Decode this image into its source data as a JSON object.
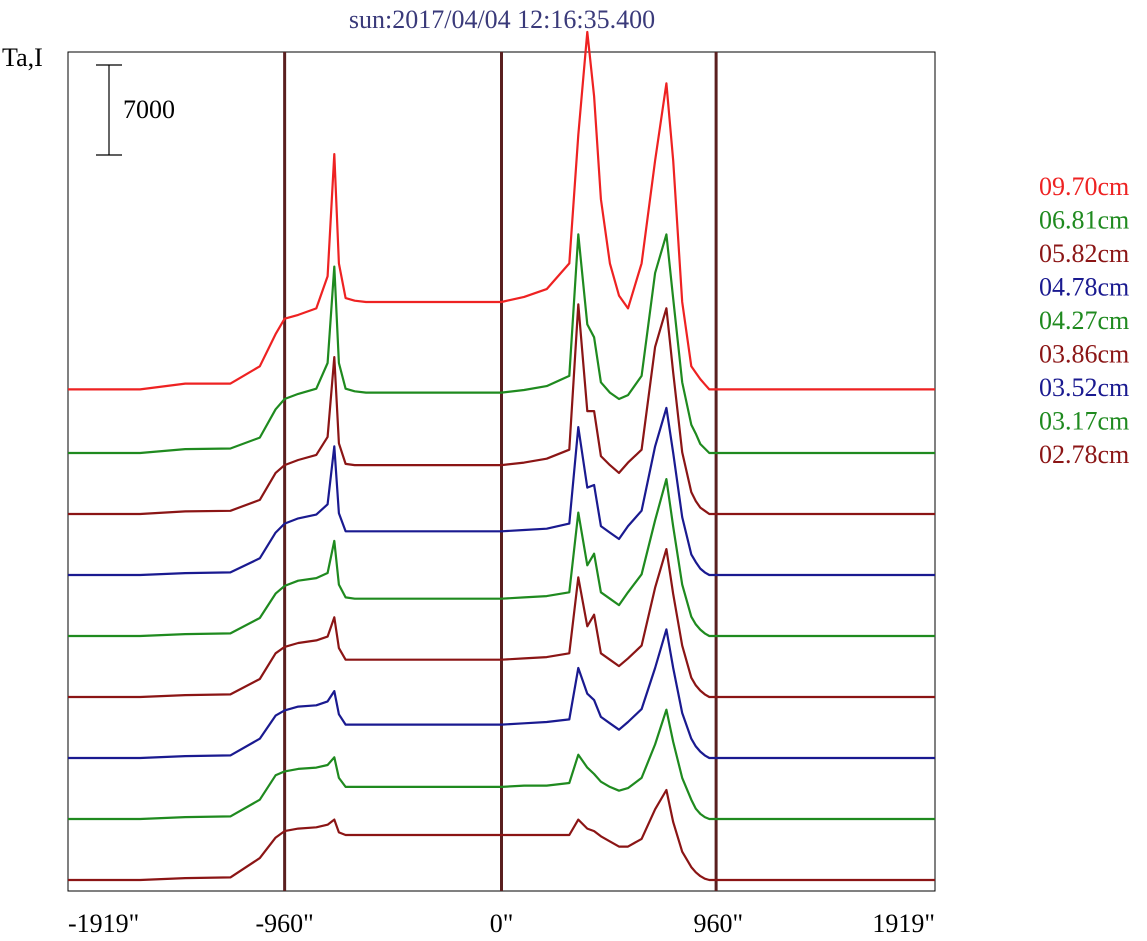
{
  "chart_data": {
    "type": "line",
    "title": "sun:2017/04/04 12:16:35.400",
    "ylabel": "Ta,I",
    "scale_bar_label": "7000",
    "scale_bar_value": 7000,
    "xlim": [
      -1919,
      1919
    ],
    "x_ticks": [
      {
        "value": -1919,
        "label": "-1919\""
      },
      {
        "value": -960,
        "label": "-960\""
      },
      {
        "value": 0,
        "label": "0\""
      },
      {
        "value": 960,
        "label": "960\""
      },
      {
        "value": 1919,
        "label": "1919\""
      }
    ],
    "vertical_markers": [
      -960,
      0,
      950
    ],
    "x": [
      -1919,
      -1600,
      -1400,
      -1200,
      -1070,
      -1000,
      -960,
      -900,
      -820,
      -770,
      -740,
      -720,
      -690,
      -650,
      -600,
      -400,
      -200,
      0,
      100,
      200,
      300,
      340,
      380,
      410,
      440,
      480,
      520,
      560,
      620,
      680,
      730,
      760,
      800,
      840,
      860,
      880,
      900,
      920,
      950,
      980,
      1020,
      1080,
      1200,
      1400,
      1600,
      1919
    ],
    "series": [
      {
        "name": "09.70cm",
        "color": "#ee2222",
        "values": [
          200,
          200,
          650,
          650,
          2000,
          4500,
          5700,
          6000,
          6500,
          9000,
          18500,
          10000,
          7300,
          7100,
          7000,
          7000,
          7000,
          7000,
          7400,
          8000,
          10000,
          20000,
          28000,
          23000,
          15000,
          10000,
          7500,
          6500,
          10000,
          18000,
          24000,
          18000,
          7000,
          2000,
          1500,
          1000,
          600,
          200,
          200,
          200,
          200,
          200,
          200,
          200,
          200,
          200
        ]
      },
      {
        "name": "06.81cm",
        "color": "#1f8a1f",
        "values": [
          0,
          0,
          300,
          350,
          1200,
          3400,
          4200,
          4600,
          5000,
          7000,
          14500,
          7000,
          5000,
          4800,
          4700,
          4700,
          4700,
          4700,
          4900,
          5200,
          6000,
          17000,
          10000,
          9000,
          5500,
          4700,
          4200,
          4500,
          6000,
          14000,
          17000,
          12000,
          5500,
          2200,
          1500,
          700,
          350,
          0,
          0,
          0,
          0,
          0,
          0,
          0,
          0,
          0
        ]
      },
      {
        "name": "05.82cm",
        "color": "#8b1515",
        "values": [
          0,
          0,
          200,
          250,
          1100,
          3200,
          3800,
          4200,
          4600,
          6000,
          12200,
          5500,
          3900,
          3800,
          3800,
          3800,
          3800,
          3800,
          4000,
          4300,
          5000,
          16300,
          8000,
          8000,
          4500,
          3800,
          3200,
          4000,
          5000,
          13000,
          16000,
          11000,
          4800,
          1700,
          1000,
          500,
          250,
          0,
          0,
          0,
          0,
          0,
          0,
          0,
          0,
          0
        ]
      },
      {
        "name": "04.78cm",
        "color": "#1a1a90",
        "values": [
          0,
          0,
          150,
          200,
          1300,
          3300,
          4000,
          4400,
          4700,
          5500,
          10000,
          4800,
          3400,
          3400,
          3400,
          3400,
          3400,
          3400,
          3500,
          3600,
          4000,
          11500,
          6800,
          7000,
          3800,
          3300,
          2800,
          3800,
          5000,
          10000,
          13000,
          9500,
          4500,
          1600,
          1000,
          500,
          200,
          0,
          0,
          0,
          0,
          0,
          0,
          0,
          0,
          0
        ]
      },
      {
        "name": "04.27cm",
        "color": "#1f8a1f",
        "values": [
          0,
          0,
          150,
          200,
          1400,
          3300,
          3900,
          4300,
          4500,
          4900,
          7400,
          4000,
          3000,
          2900,
          2900,
          2900,
          2900,
          2900,
          3000,
          3100,
          3400,
          9600,
          5500,
          6400,
          3400,
          2900,
          2400,
          3400,
          4800,
          9000,
          12200,
          8500,
          4000,
          1500,
          900,
          500,
          200,
          0,
          0,
          0,
          0,
          0,
          0,
          0,
          0,
          0
        ]
      },
      {
        "name": "03.86cm",
        "color": "#8b1515",
        "values": [
          0,
          0,
          150,
          200,
          1400,
          3400,
          3900,
          4200,
          4400,
          4700,
          6200,
          3800,
          2900,
          2900,
          2900,
          2900,
          2900,
          2900,
          3000,
          3100,
          3400,
          9300,
          5500,
          6400,
          3400,
          2900,
          2400,
          3000,
          4000,
          8500,
          11500,
          8000,
          4000,
          1500,
          900,
          500,
          200,
          0,
          0,
          0,
          0,
          0,
          0,
          0,
          0,
          0
        ]
      },
      {
        "name": "03.52cm",
        "color": "#1a1a90",
        "values": [
          0,
          0,
          150,
          200,
          1500,
          3300,
          3700,
          4000,
          4100,
          4400,
          5200,
          3400,
          2600,
          2600,
          2600,
          2600,
          2600,
          2600,
          2700,
          2800,
          3000,
          7000,
          5000,
          4500,
          3200,
          2700,
          2200,
          2800,
          3800,
          7000,
          10000,
          7000,
          3500,
          1500,
          900,
          500,
          200,
          0,
          0,
          0,
          0,
          0,
          0,
          0,
          0,
          0
        ]
      },
      {
        "name": "03.17cm",
        "color": "#1f8a1f",
        "values": [
          0,
          0,
          150,
          200,
          1500,
          3400,
          3700,
          3900,
          4000,
          4200,
          4800,
          3200,
          2500,
          2500,
          2500,
          2500,
          2500,
          2500,
          2600,
          2600,
          2800,
          5000,
          4000,
          3500,
          2900,
          2500,
          2200,
          2400,
          3200,
          5800,
          8500,
          6000,
          3200,
          1500,
          800,
          400,
          150,
          0,
          0,
          0,
          0,
          0,
          0,
          0,
          0,
          0
        ]
      },
      {
        "name": "02.78cm",
        "color": "#8b1515",
        "values": [
          0,
          0,
          150,
          200,
          1700,
          3300,
          3800,
          4000,
          4100,
          4300,
          4700,
          3700,
          3500,
          3500,
          3500,
          3500,
          3500,
          3500,
          3500,
          3500,
          3500,
          4700,
          4000,
          3800,
          3400,
          3000,
          2600,
          2600,
          3200,
          5500,
          7000,
          4500,
          2200,
          1000,
          600,
          300,
          100,
          0,
          0,
          0,
          0,
          0,
          0,
          0,
          0,
          0
        ]
      }
    ]
  }
}
